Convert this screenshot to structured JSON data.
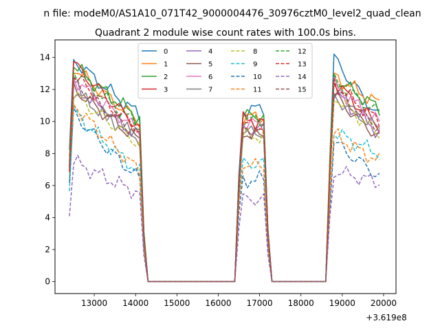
{
  "chart_data": {
    "type": "line",
    "suptitle": "n file: modeM0/AS1A10_071T42_9000004476_30976cztM0_level2_quad_clean",
    "title": "Quadrant 2 module wise count rates with 100.0s bins.",
    "x_offset_label": "+3.619e8",
    "xlim": [
      12050,
      20300
    ],
    "ylim": [
      -0.75,
      15.1
    ],
    "xticks": [
      13000,
      14000,
      15000,
      16000,
      17000,
      18000,
      19000,
      20000
    ],
    "xtick_labels": [
      "13000",
      "14000",
      "15000",
      "16000",
      "17000",
      "18000",
      "19000",
      "20000"
    ],
    "yticks": [
      0,
      2,
      4,
      6,
      8,
      10,
      12,
      14
    ],
    "ytick_labels": [
      "0",
      "2",
      "4",
      "6",
      "8",
      "10",
      "12",
      "14"
    ],
    "grid": false,
    "legend_location": "upper center",
    "segments": [
      {
        "start": 12400,
        "end": 14100
      },
      {
        "start": 16500,
        "end": 17100
      },
      {
        "start": 18700,
        "end": 19900
      }
    ],
    "series": [
      {
        "name": "0",
        "color": "#1f77b4",
        "dash": "solid",
        "peaks": [
          14.2,
          11.4,
          14.4
        ],
        "ends": [
          10.4,
          11.3,
          10.3
        ]
      },
      {
        "name": "1",
        "color": "#ff7f0e",
        "dash": "solid",
        "peaks": [
          13.7,
          10.9,
          13.1
        ],
        "ends": [
          10.0,
          10.8,
          11.1
        ]
      },
      {
        "name": "2",
        "color": "#2ca02c",
        "dash": "solid",
        "peaks": [
          13.8,
          11.0,
          13.0
        ],
        "ends": [
          10.2,
          10.9,
          10.8
        ]
      },
      {
        "name": "3",
        "color": "#d62728",
        "dash": "solid",
        "peaks": [
          14.0,
          10.6,
          12.9
        ],
        "ends": [
          9.6,
          10.7,
          9.7
        ]
      },
      {
        "name": "4",
        "color": "#9467bd",
        "dash": "solid",
        "peaks": [
          12.6,
          10.1,
          12.2
        ],
        "ends": [
          9.0,
          10.2,
          9.3
        ]
      },
      {
        "name": "5",
        "color": "#8c564b",
        "dash": "solid",
        "peaks": [
          12.4,
          9.6,
          12.0
        ],
        "ends": [
          8.8,
          10.0,
          9.0
        ]
      },
      {
        "name": "6",
        "color": "#e377c2",
        "dash": "solid",
        "peaks": [
          13.0,
          10.4,
          12.6
        ],
        "ends": [
          9.4,
          10.5,
          9.9
        ]
      },
      {
        "name": "7",
        "color": "#7f7f7f",
        "dash": "solid",
        "peaks": [
          12.2,
          9.9,
          11.8
        ],
        "ends": [
          8.9,
          9.9,
          9.5
        ]
      },
      {
        "name": "8",
        "color": "#bcbd22",
        "dash": "dashed",
        "peaks": [
          12.0,
          9.7,
          11.9
        ],
        "ends": [
          8.6,
          9.7,
          9.2
        ]
      },
      {
        "name": "9",
        "color": "#17becf",
        "dash": "dashed",
        "peaks": [
          11.0,
          8.0,
          9.5
        ],
        "ends": [
          6.8,
          8.0,
          8.0
        ]
      },
      {
        "name": "10",
        "color": "#1f77b4",
        "dash": "dashed",
        "peaks": [
          10.9,
          7.0,
          9.0
        ],
        "ends": [
          6.4,
          6.9,
          6.6
        ]
      },
      {
        "name": "11",
        "color": "#ff7f0e",
        "dash": "dashed",
        "peaks": [
          11.5,
          7.7,
          9.4
        ],
        "ends": [
          6.9,
          8.1,
          7.5
        ]
      },
      {
        "name": "12",
        "color": "#2ca02c",
        "dash": "dashed",
        "peaks": [
          13.5,
          10.7,
          12.9
        ],
        "ends": [
          9.7,
          10.6,
          10.5
        ]
      },
      {
        "name": "13",
        "color": "#d62728",
        "dash": "dashed",
        "peaks": [
          13.2,
          10.3,
          12.7
        ],
        "ends": [
          9.5,
          10.4,
          10.0
        ]
      },
      {
        "name": "14",
        "color": "#9467bd",
        "dash": "dashed",
        "peaks": [
          7.7,
          5.8,
          7.0
        ],
        "ends": [
          5.5,
          5.7,
          6.2
        ]
      },
      {
        "name": "15",
        "color": "#8c564b",
        "dash": "dashed",
        "peaks": [
          12.8,
          10.0,
          12.3
        ],
        "ends": [
          9.1,
          10.1,
          9.6
        ]
      }
    ]
  }
}
